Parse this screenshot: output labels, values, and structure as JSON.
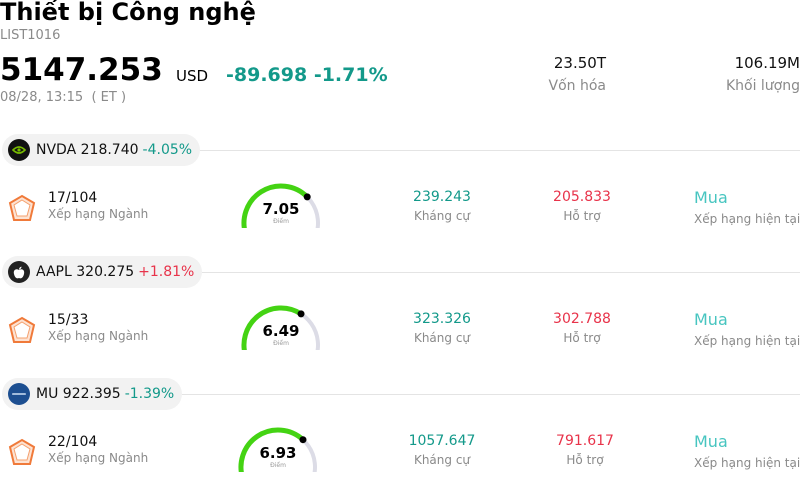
{
  "header": {
    "title": "Thiết bị Công nghệ",
    "code": "LIST1016",
    "price": "5147.253",
    "currency": "USD",
    "change": "-89.698 -1.71%",
    "time": "08/28, 13:15  ( ET )",
    "market_cap": {
      "value": "23.50T",
      "label": "Vốn hóa"
    },
    "volume": {
      "value": "106.19M",
      "label": "Khối lượng"
    }
  },
  "colors": {
    "up": "#e8334a",
    "down": "#13998a",
    "gauge_active": "#44d313",
    "gauge_track": "#dcdce6",
    "buy": "#47c5c0"
  },
  "stocks": [
    {
      "ticker": "NVDA",
      "price": "218.740",
      "change": "-4.05%",
      "direction": "down",
      "logo_icon": "nvidia-logo-icon",
      "rank": "17/104",
      "rank_label": "Xếp hạng Ngành",
      "score": "7.05",
      "score_value": 7.05,
      "score_label": "Điểm",
      "resistance": "239.243",
      "resistance_label": "Kháng cự",
      "support": "205.833",
      "support_label": "Hỗ trợ",
      "rating": "Mua",
      "rating_label": "Xếp hạng hiện tại"
    },
    {
      "ticker": "AAPL",
      "price": "320.275",
      "change": "+1.81%",
      "direction": "up",
      "logo_icon": "apple-logo-icon",
      "rank": "15/33",
      "rank_label": "Xếp hạng Ngành",
      "score": "6.49",
      "score_value": 6.49,
      "score_label": "Điểm",
      "resistance": "323.326",
      "resistance_label": "Kháng cự",
      "support": "302.788",
      "support_label": "Hỗ trợ",
      "rating": "Mua",
      "rating_label": "Xếp hạng hiện tại"
    },
    {
      "ticker": "MU",
      "price": "922.395",
      "change": "-1.39%",
      "direction": "down",
      "logo_icon": "micron-logo-icon",
      "rank": "22/104",
      "rank_label": "Xếp hạng Ngành",
      "score": "6.93",
      "score_value": 6.93,
      "score_label": "Điểm",
      "resistance": "1057.647",
      "resistance_label": "Kháng cự",
      "support": "791.617",
      "support_label": "Hỗ trợ",
      "rating": "Mua",
      "rating_label": "Xếp hạng hiện tại"
    }
  ]
}
